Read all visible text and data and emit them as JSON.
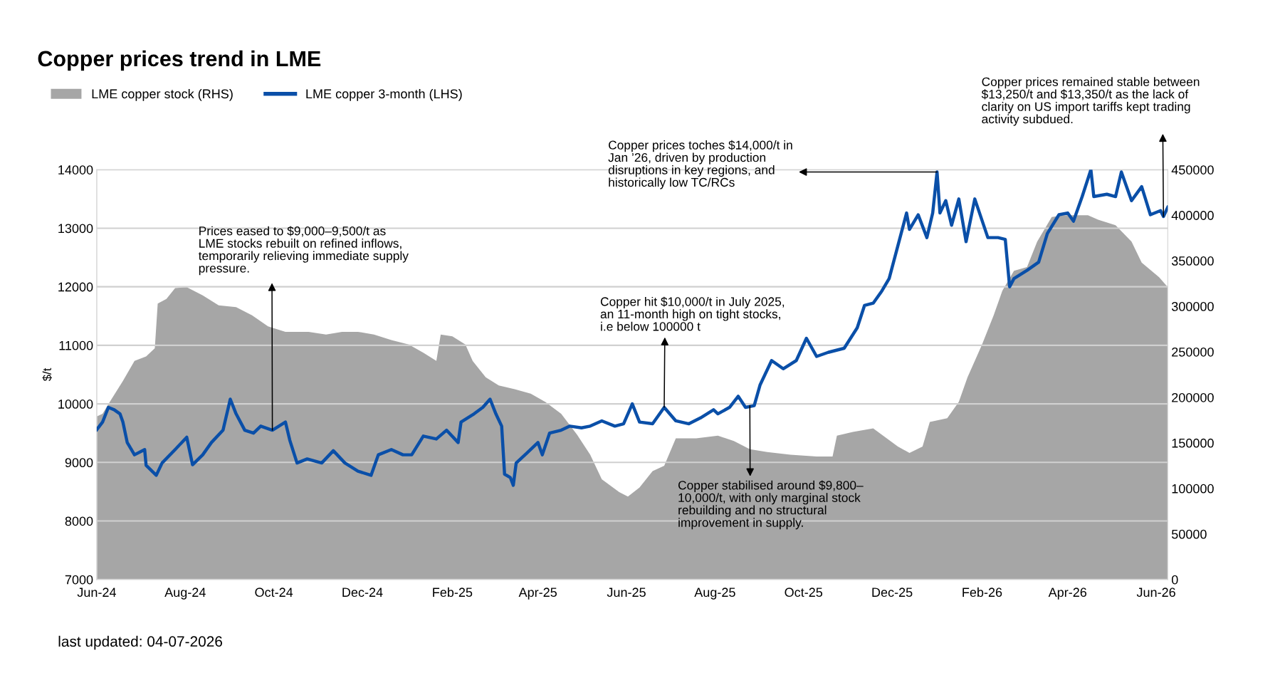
{
  "chart_data": {
    "type": "line",
    "title": "Copper prices trend in LME",
    "ylabel": "$/t",
    "legend": "top left",
    "grid": "y",
    "line_style": "solid",
    "marker": "none",
    "xlim": [
      "2024-06-01",
      "2026-06-09"
    ],
    "xticks": [
      {
        "value": "2024-06-01",
        "label": "Jun-24"
      },
      {
        "value": "2024-08-01",
        "label": "Aug-24"
      },
      {
        "value": "2024-10-01",
        "label": "Oct-24"
      },
      {
        "value": "2024-12-01",
        "label": "Dec-24"
      },
      {
        "value": "2025-02-01",
        "label": "Feb-25"
      },
      {
        "value": "2025-04-01",
        "label": "Apr-25"
      },
      {
        "value": "2025-06-01",
        "label": "Jun-25"
      },
      {
        "value": "2025-08-01",
        "label": "Aug-25"
      },
      {
        "value": "2025-10-01",
        "label": "Oct-25"
      },
      {
        "value": "2025-12-01",
        "label": "Dec-25"
      },
      {
        "value": "2026-02-01",
        "label": "Feb-26"
      },
      {
        "value": "2026-04-01",
        "label": "Apr-26"
      },
      {
        "value": "2026-06-01",
        "label": "Jun-26"
      }
    ],
    "ylim": [
      7000,
      14000
    ],
    "yticks": [
      7000,
      8000,
      9000,
      10000,
      11000,
      12000,
      13000,
      14000
    ],
    "y2lim": [
      0,
      450000
    ],
    "y2ticks": [
      0,
      50000,
      100000,
      150000,
      200000,
      250000,
      300000,
      350000,
      400000,
      450000
    ],
    "series": [
      {
        "name": "LME copper stock (RHS)",
        "type": "area",
        "axis": "y2",
        "color": "#a6a6a6",
        "x": [
          "2024-06-01",
          "2024-06-05",
          "2024-06-10",
          "2024-06-19",
          "2024-06-27",
          "2024-07-05",
          "2024-07-11",
          "2024-07-13",
          "2024-07-19",
          "2024-07-25",
          "2024-08-02",
          "2024-08-13",
          "2024-08-24",
          "2024-09-05",
          "2024-09-16",
          "2024-09-27",
          "2024-10-09",
          "2024-10-25",
          "2024-11-06",
          "2024-11-17",
          "2024-11-28",
          "2024-12-09",
          "2024-12-21",
          "2025-01-02",
          "2025-01-12",
          "2025-01-21",
          "2025-01-24",
          "2025-02-01",
          "2025-02-10",
          "2025-02-15",
          "2025-02-24",
          "2025-03-05",
          "2025-03-16",
          "2025-03-27",
          "2025-04-06",
          "2025-04-17",
          "2025-04-28",
          "2025-05-07",
          "2025-05-15",
          "2025-05-27",
          "2025-06-02",
          "2025-06-10",
          "2025-06-19",
          "2025-06-27",
          "2025-07-05",
          "2025-07-19",
          "2025-08-03",
          "2025-08-14",
          "2025-08-25",
          "2025-09-06",
          "2025-09-22",
          "2025-10-10",
          "2025-10-21",
          "2025-10-24",
          "2025-11-04",
          "2025-11-18",
          "2025-11-24",
          "2025-12-05",
          "2025-12-13",
          "2025-12-22",
          "2025-12-27",
          "2026-01-08",
          "2026-01-16",
          "2026-01-22",
          "2026-02-01",
          "2026-02-09",
          "2026-02-15",
          "2026-02-23",
          "2026-03-04",
          "2026-03-11",
          "2026-03-21",
          "2026-03-29",
          "2026-04-15",
          "2026-04-22",
          "2026-05-04",
          "2026-05-15",
          "2026-05-22",
          "2026-06-03",
          "2026-06-09"
        ],
        "values": [
          179000,
          182000,
          195000,
          218000,
          240000,
          245000,
          254000,
          303000,
          308000,
          320000,
          321000,
          312000,
          301000,
          299000,
          290000,
          278000,
          272000,
          272000,
          269000,
          272000,
          272000,
          269000,
          263000,
          258000,
          249000,
          240000,
          269000,
          267000,
          258000,
          240000,
          222000,
          213000,
          209000,
          204000,
          195000,
          182000,
          159000,
          137000,
          110000,
          96000,
          91000,
          101000,
          119000,
          125000,
          155000,
          155000,
          158000,
          152000,
          143000,
          140000,
          137000,
          135000,
          135000,
          158000,
          162000,
          166000,
          159000,
          146000,
          139000,
          146000,
          173000,
          177000,
          195000,
          222000,
          258000,
          290000,
          317000,
          339000,
          343000,
          371000,
          398000,
          400000,
          400000,
          395000,
          389000,
          371000,
          348000,
          332000,
          321000
        ]
      },
      {
        "name": "LME copper 3-month (LHS)",
        "color": "#0a4fa8",
        "x": [
          "2024-06-01",
          "2024-06-05",
          "2024-06-09",
          "2024-06-13",
          "2024-06-17",
          "2024-06-19",
          "2024-06-22",
          "2024-06-27",
          "2024-07-04",
          "2024-07-05",
          "2024-07-12",
          "2024-07-16",
          "2024-07-25",
          "2024-08-02",
          "2024-08-06",
          "2024-08-13",
          "2024-08-19",
          "2024-08-27",
          "2024-09-01",
          "2024-09-05",
          "2024-09-11",
          "2024-09-17",
          "2024-09-22",
          "2024-09-30",
          "2024-10-09",
          "2024-10-12",
          "2024-10-17",
          "2024-10-24",
          "2024-11-03",
          "2024-11-11",
          "2024-11-19",
          "2024-11-28",
          "2024-12-07",
          "2024-12-12",
          "2024-12-21",
          "2024-12-29",
          "2025-01-04",
          "2025-01-12",
          "2025-01-21",
          "2025-01-28",
          "2025-02-05",
          "2025-02-07",
          "2025-02-16",
          "2025-02-22",
          "2025-02-27",
          "2025-03-03",
          "2025-03-07",
          "2025-03-09",
          "2025-03-13",
          "2025-03-15",
          "2025-03-17",
          "2025-03-24",
          "2025-04-01",
          "2025-04-04",
          "2025-04-09",
          "2025-04-17",
          "2025-04-23",
          "2025-05-01",
          "2025-05-07",
          "2025-05-15",
          "2025-05-24",
          "2025-05-30",
          "2025-06-05",
          "2025-06-10",
          "2025-06-19",
          "2025-06-27",
          "2025-07-05",
          "2025-07-14",
          "2025-07-22",
          "2025-07-31",
          "2025-08-03",
          "2025-08-11",
          "2025-08-17",
          "2025-08-22",
          "2025-08-28",
          "2025-09-01",
          "2025-09-09",
          "2025-09-17",
          "2025-09-26",
          "2025-10-03",
          "2025-10-10",
          "2025-10-18",
          "2025-10-29",
          "2025-11-07",
          "2025-11-12",
          "2025-11-18",
          "2025-11-24",
          "2025-11-29",
          "2025-12-05",
          "2025-12-11",
          "2025-12-13",
          "2025-12-19",
          "2025-12-25",
          "2025-12-29",
          "2026-01-01",
          "2026-01-03",
          "2026-01-07",
          "2026-01-11",
          "2026-01-16",
          "2026-01-21",
          "2026-01-27",
          "2026-02-05",
          "2026-02-12",
          "2026-02-17",
          "2026-02-20",
          "2026-02-23",
          "2026-03-04",
          "2026-03-12",
          "2026-03-18",
          "2026-03-26",
          "2026-04-01",
          "2026-04-05",
          "2026-04-11",
          "2026-04-17",
          "2026-04-19",
          "2026-04-28",
          "2026-05-04",
          "2026-05-08",
          "2026-05-15",
          "2026-05-22",
          "2026-05-28",
          "2026-06-04",
          "2026-06-06",
          "2026-06-09"
        ],
        "values": [
          9560,
          9690,
          9940,
          9900,
          9830,
          9690,
          9340,
          9130,
          9220,
          8950,
          8780,
          8990,
          9220,
          9430,
          8960,
          9130,
          9340,
          9550,
          10080,
          9830,
          9550,
          9500,
          9620,
          9550,
          9690,
          9380,
          8990,
          9060,
          8990,
          9200,
          8990,
          8850,
          8780,
          9130,
          9220,
          9130,
          9130,
          9450,
          9400,
          9550,
          9340,
          9690,
          9830,
          9940,
          10080,
          9830,
          9620,
          8800,
          8740,
          8610,
          8990,
          9150,
          9340,
          9130,
          9500,
          9550,
          9620,
          9590,
          9620,
          9710,
          9620,
          9660,
          10000,
          9690,
          9660,
          9940,
          9710,
          9660,
          9760,
          9900,
          9830,
          9940,
          10130,
          9940,
          9970,
          10320,
          10740,
          10600,
          10740,
          11120,
          10810,
          10880,
          10950,
          11300,
          11680,
          11720,
          11930,
          12140,
          12700,
          13260,
          12980,
          13230,
          12840,
          13260,
          13960,
          13260,
          13470,
          13050,
          13500,
          12770,
          13500,
          12840,
          12840,
          12810,
          12000,
          12140,
          12280,
          12420,
          12910,
          13230,
          13260,
          13120,
          13540,
          14000,
          13540,
          13580,
          13540,
          13960,
          13470,
          13710,
          13230,
          13300,
          13200,
          13360
        ]
      }
    ],
    "annotations": [
      {
        "text": "Prices eased to $9,000–9,500/t as\nLME stocks rebuilt on refined inflows,\ntemporarily relieving immediate supply\npressure.",
        "x": "2024-09-30",
        "y": 9550
      },
      {
        "text": "Copper hit $10,000/t in July 2025,\nan 11-month high on tight stocks,\ni.e below 100000 t",
        "x": "2025-06-27",
        "y": 9940
      },
      {
        "text": "Copper stabilised around $9,800–\n10,000/t, with only marginal stock\nrebuilding and no structural\nimprovement in supply.",
        "x": "2025-08-25",
        "y": 9970
      },
      {
        "text": "Copper prices toches $14,000/t in\nJan ’26, driven by production\ndisruptions in key regions, and\nhistorically low TC/RCs",
        "x": "2026-01-01",
        "y": 13960
      },
      {
        "text": "Copper prices remained stable between\n$13,250/t and $13,350/t as the lack of\nclarity on US import tariffs kept trading\nactivity subdued.",
        "x": "2026-06-06",
        "y": 13200
      },
      "last updated: 04-07-2026"
    ]
  }
}
